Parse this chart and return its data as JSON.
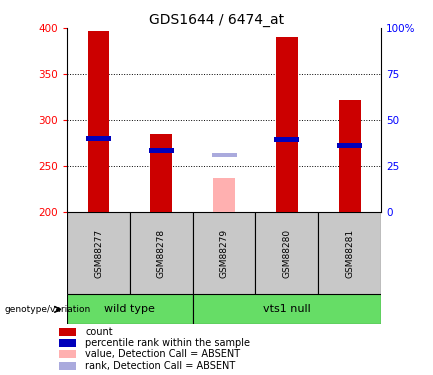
{
  "title": "GDS1644 / 6474_at",
  "samples": [
    "GSM88277",
    "GSM88278",
    "GSM88279",
    "GSM88280",
    "GSM88281"
  ],
  "count_values": [
    397,
    285,
    200,
    390,
    322
  ],
  "percentile_values": [
    280,
    267,
    200,
    279,
    272
  ],
  "absent_flags": [
    false,
    false,
    true,
    false,
    false
  ],
  "absent_bar_value": 237,
  "absent_rank_value": 262,
  "ymin": 200,
  "ymax": 400,
  "y_ticks_left": [
    200,
    250,
    300,
    350,
    400
  ],
  "y_ticks_right": [
    0,
    25,
    50,
    75,
    100
  ],
  "groups": [
    {
      "label": "wild type",
      "indices": [
        0,
        1
      ],
      "color": "#66DD66"
    },
    {
      "label": "vts1 null",
      "indices": [
        2,
        3,
        4
      ],
      "color": "#66DD66"
    }
  ],
  "bar_color_normal": "#CC0000",
  "bar_color_absent": "#FFB0B0",
  "rank_color_normal": "#0000BB",
  "rank_color_absent": "#AAAADD",
  "bar_width": 0.35,
  "label_area_color": "#C8C8C8",
  "legend_items": [
    {
      "color": "#CC0000",
      "label": "count"
    },
    {
      "color": "#0000BB",
      "label": "percentile rank within the sample"
    },
    {
      "color": "#FFB0B0",
      "label": "value, Detection Call = ABSENT"
    },
    {
      "color": "#AAAADD",
      "label": "rank, Detection Call = ABSENT"
    }
  ]
}
